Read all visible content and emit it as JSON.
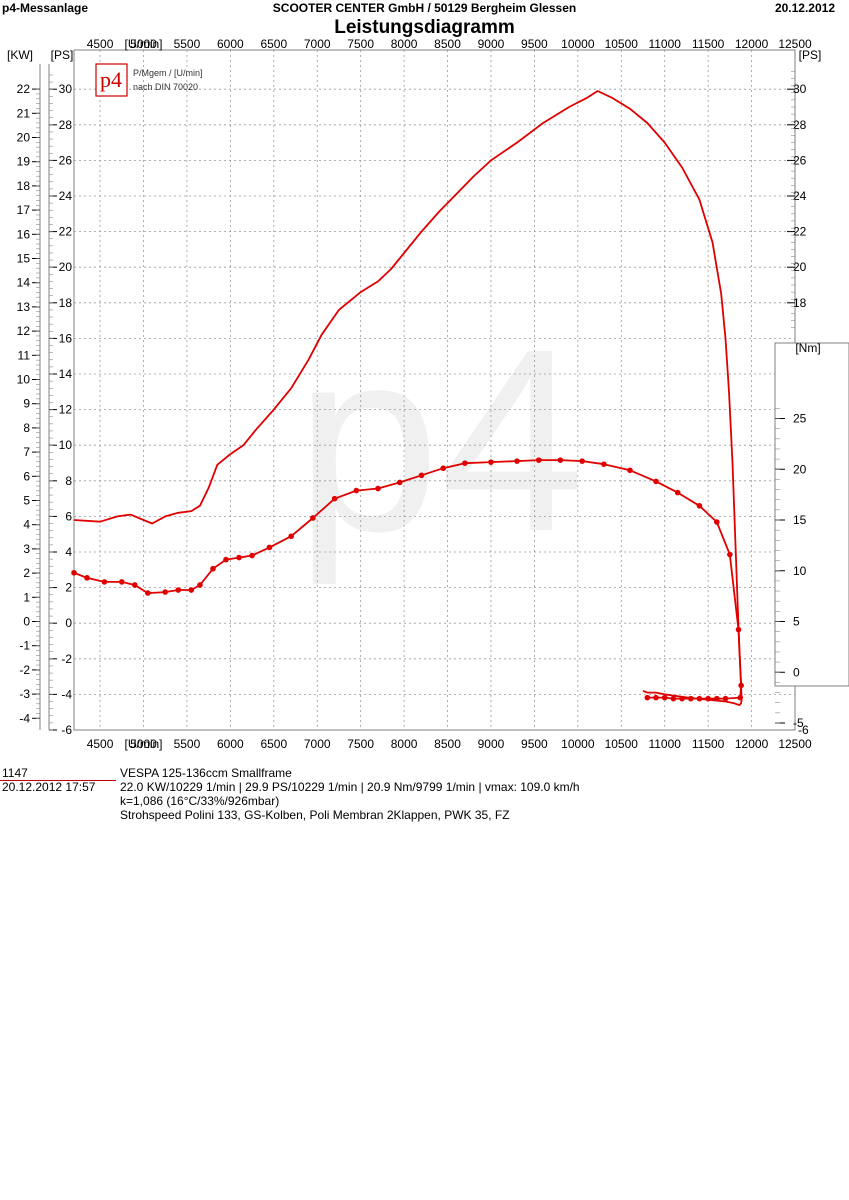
{
  "header": {
    "left": "p4-Messanlage",
    "center": "SCOOTER CENTER GmbH / 50129 Bergheim Glessen",
    "right": "20.12.2012"
  },
  "title": "Leistungsdiagramm",
  "logo": {
    "mark": "p4",
    "line1": "P/Mgem / [U/min]",
    "line2": "nach DIN 70020"
  },
  "watermark": "p4",
  "colors": {
    "curve": "#e00000",
    "grid": "#9a9a9a",
    "border": "#808080",
    "logo": "#cc0000"
  },
  "info": {
    "id": "1147",
    "date": "20.12.2012  17:57",
    "vehicle": "VESPA 125-136ccm Smallframe",
    "results": "22.0 KW/10229 1/min  |  29.9 PS/10229 1/min  |  20.9 Nm/9799 1/min | vmax: 109.0 km/h",
    "k": "k=1,086 (16°C/33%/926mbar)",
    "setup": "Strohspeed Polini 133, GS-Kolben, Poli Membran 2Klappen, PWK 35, FZ"
  },
  "chart_data": {
    "type": "line",
    "x_unit": "[U/min]",
    "xlim": [
      4200,
      12500
    ],
    "x_ticks": [
      "4500",
      "5000",
      "5500",
      "6000",
      "6500",
      "7000",
      "7500",
      "8000",
      "8500",
      "9000",
      "9500",
      "10000",
      "10500",
      "11000",
      "11500",
      "12000",
      "12500"
    ],
    "axes": {
      "ps": {
        "unit": "[PS]",
        "range": [
          -6,
          32
        ],
        "ticks": [
          "-6",
          "-4",
          "-2",
          "0",
          "2",
          "4",
          "6",
          "8",
          "10",
          "12",
          "14",
          "16",
          "18",
          "20",
          "22",
          "24",
          "26",
          "28",
          "30"
        ]
      },
      "kw": {
        "unit": "[KW]",
        "ticks": [
          "-4",
          "-3",
          "-2",
          "-1",
          "0",
          "1",
          "2",
          "3",
          "4",
          "5",
          "6",
          "7",
          "8",
          "9",
          "10",
          "11",
          "12",
          "13",
          "14",
          "15",
          "16",
          "17",
          "18",
          "19",
          "20",
          "21",
          "22"
        ]
      },
      "nm": {
        "unit": "[Nm]",
        "range": [
          -6,
          26
        ],
        "ticks": [
          "-5",
          "0",
          "5",
          "10",
          "15",
          "20",
          "25"
        ]
      }
    },
    "grid": true,
    "series": [
      {
        "role": "power",
        "axis": "ps",
        "markers": false,
        "x": [
          4200,
          4500,
          4700,
          4850,
          5000,
          5100,
          5250,
          5400,
          5550,
          5650,
          5750,
          5850,
          6000,
          6150,
          6300,
          6500,
          6700,
          6900,
          7050,
          7250,
          7500,
          7700,
          7850,
          8000,
          8200,
          8400,
          8600,
          8800,
          9000,
          9300,
          9600,
          9900,
          10100,
          10229,
          10400,
          10600,
          10800,
          11000,
          11200,
          11400,
          11550,
          11650,
          11700,
          11740,
          11780,
          11810,
          11840,
          11860,
          11880,
          11885,
          11880,
          11860,
          11800,
          11700,
          11500,
          11300,
          11000,
          10900,
          10800,
          10750
        ],
        "y": [
          5.8,
          5.7,
          6.0,
          6.1,
          5.8,
          5.6,
          6.0,
          6.2,
          6.3,
          6.6,
          7.6,
          8.9,
          9.5,
          10.0,
          10.9,
          12.0,
          13.2,
          14.8,
          16.2,
          17.6,
          18.6,
          19.2,
          19.9,
          20.8,
          22.0,
          23.1,
          24.1,
          25.1,
          26.0,
          27.0,
          28.1,
          29.0,
          29.5,
          29.9,
          29.5,
          28.9,
          28.1,
          27.0,
          25.6,
          23.8,
          21.4,
          18.5,
          16.0,
          13.0,
          9.0,
          5.0,
          1.0,
          -1.5,
          -3.5,
          -4.3,
          -4.5,
          -4.6,
          -4.5,
          -4.4,
          -4.3,
          -4.2,
          -4.0,
          -3.9,
          -3.9,
          -3.8
        ]
      },
      {
        "role": "torque",
        "axis": "nm",
        "markers": true,
        "x": [
          4200,
          4350,
          4550,
          4750,
          4900,
          5050,
          5250,
          5400,
          5550,
          5650,
          5800,
          5950,
          6100,
          6250,
          6450,
          6700,
          6950,
          7200,
          7450,
          7700,
          7950,
          8200,
          8450,
          8700,
          9000,
          9300,
          9550,
          9799,
          10050,
          10300,
          10600,
          10900,
          11150,
          11400,
          11600,
          11750,
          11850,
          11880,
          11870,
          11700,
          11600,
          11500,
          11400,
          11300,
          11200,
          11100,
          11000,
          10900,
          10800
        ],
        "y": [
          9.8,
          9.3,
          8.9,
          8.9,
          8.6,
          7.8,
          7.9,
          8.1,
          8.1,
          8.6,
          10.2,
          11.1,
          11.3,
          11.5,
          12.3,
          13.4,
          15.2,
          17.1,
          17.9,
          18.1,
          18.7,
          19.4,
          20.1,
          20.6,
          20.7,
          20.8,
          20.9,
          20.9,
          20.8,
          20.5,
          19.9,
          18.8,
          17.7,
          16.4,
          14.8,
          11.6,
          4.2,
          -1.3,
          -2.5,
          -2.6,
          -2.6,
          -2.6,
          -2.6,
          -2.6,
          -2.6,
          -2.6,
          -2.5,
          -2.5,
          -2.5
        ]
      }
    ]
  }
}
